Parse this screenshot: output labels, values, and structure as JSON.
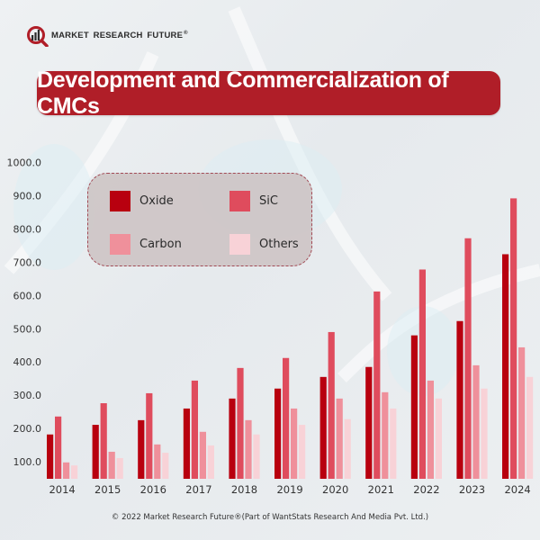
{
  "brand": {
    "name": "MARKET RESEARCH FUTURE",
    "registered_mark": "®"
  },
  "title": "Development and Commercialization of CMCs",
  "footer": "© 2022 Market Research Future®(Part of WantStats Research And Media Pvt. Ltd.)",
  "colors": {
    "title_bg": "#b01e28",
    "oxide": "#b8000f",
    "sic": "#df4c5d",
    "carbon": "#ef909b",
    "others": "#f8d2d7"
  },
  "legend": {
    "items": [
      {
        "label": "Oxide",
        "color": "#b8000f"
      },
      {
        "label": "SiC",
        "color": "#df4c5d"
      },
      {
        "label": "Carbon",
        "color": "#ef909b"
      },
      {
        "label": "Others",
        "color": "#f8d2d7"
      }
    ]
  },
  "chart_data": {
    "type": "bar",
    "title": "Development and Commercialization of CMCs",
    "xlabel": "",
    "ylabel": "",
    "categories": [
      "2014",
      "2015",
      "2016",
      "2017",
      "2018",
      "2019",
      "2020",
      "2021",
      "2022",
      "2023",
      "2024"
    ],
    "series": [
      {
        "name": "Oxide",
        "color": "#b8000f",
        "values": [
          182,
          211,
          225,
          260,
          290,
          320,
          355,
          385,
          480,
          523,
          724
        ]
      },
      {
        "name": "SiC",
        "color": "#df4c5d",
        "values": [
          236,
          276,
          306,
          344,
          382,
          412,
          490,
          612,
          678,
          772,
          892
        ]
      },
      {
        "name": "Carbon",
        "color": "#ef909b",
        "values": [
          98,
          130,
          152,
          190,
          225,
          260,
          290,
          309,
          344,
          390,
          444
        ]
      },
      {
        "name": "Others",
        "color": "#f8d2d7",
        "values": [
          89,
          111,
          127,
          149,
          182,
          211,
          228,
          260,
          290,
          320,
          355
        ]
      }
    ],
    "yticks": [
      "100.0",
      "200.0",
      "300.0",
      "400.0",
      "500.0",
      "600.0",
      "700.0",
      "800.0",
      "900.0",
      "1000.0"
    ],
    "ytick_values": [
      100,
      200,
      300,
      400,
      500,
      600,
      700,
      800,
      900,
      1000
    ],
    "ylim": [
      50,
      1000
    ],
    "grid": false,
    "legend_position": "top-left"
  }
}
